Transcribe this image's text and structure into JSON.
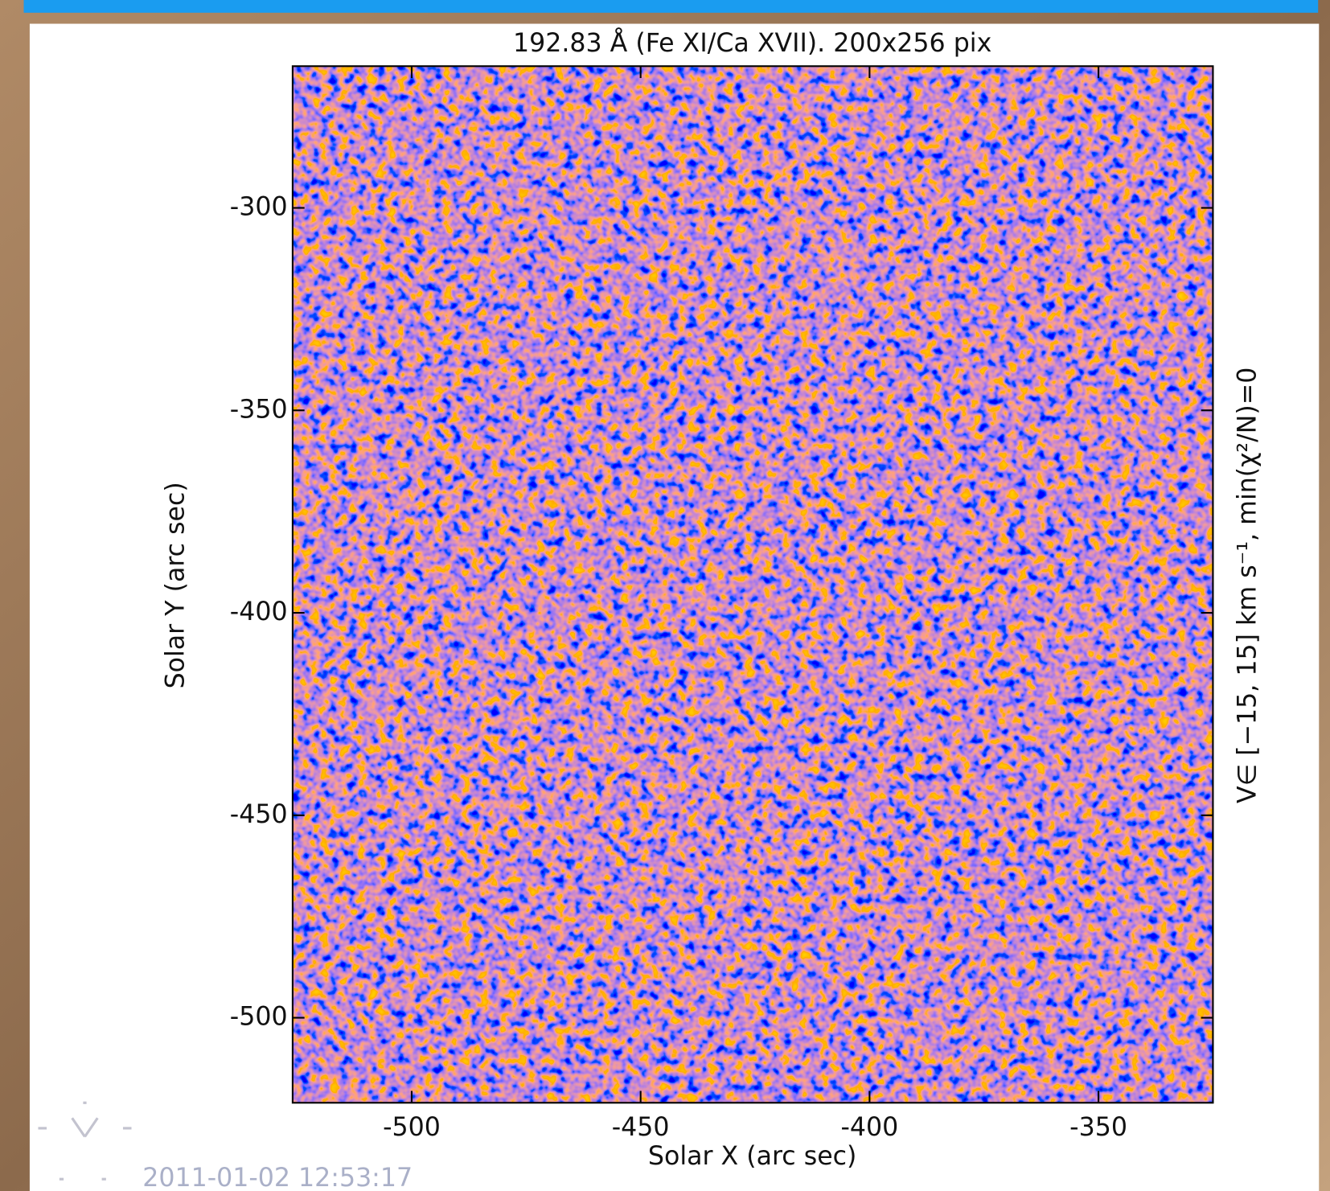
{
  "chart_data": {
    "type": "image",
    "title": "192.83 Å (Fe XI/Ca XVII). 200x256 pix",
    "x_label": "Solar X (arc sec)",
    "y_label": "Solar Y (arc sec)",
    "right_label": "V∈ [−15, 15] km s⁻¹, min(χ²/N)=0",
    "timestamp": "2011-01-02 12:53:17",
    "xlim": [
      -526,
      -325
    ],
    "xticks": [
      -500,
      -450,
      -400,
      -350
    ],
    "ylim": [
      -521,
      -265
    ],
    "yticks": [
      -300,
      -350,
      -400,
      -450,
      -500
    ]
  }
}
